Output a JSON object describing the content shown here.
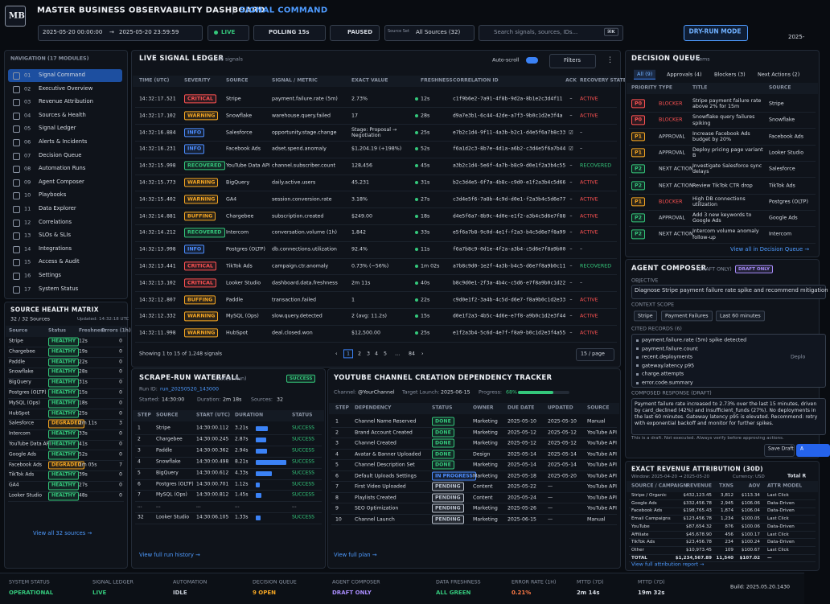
{
  "header": {
    "logo": "MB",
    "title": "MASTER BUSINESS OBSERVABILITY DASHBOARD",
    "separator": "|",
    "subtitle": "SIGNAL COMMAND",
    "date_start": "2025-05-20 00:00:00",
    "date_arrow": "→",
    "date_end": "2025-05-20 23:59:59",
    "live": "LIVE",
    "polling": "POLLING 15s",
    "paused": "PAUSED",
    "source_set_label": "Source Set",
    "source_set": "All Sources (32)",
    "search": "Search signals, sources, IDs...",
    "shortcut": "⌘K",
    "mode": "DRY-RUN MODE",
    "clock": "2025-"
  },
  "navigation": {
    "title": "NAVIGATION (17 MODULES)",
    "items": [
      [
        "01",
        "Signal Command"
      ],
      [
        "02",
        "Executive Overview"
      ],
      [
        "03",
        "Revenue Attribution"
      ],
      [
        "04",
        "Sources & Health"
      ],
      [
        "05",
        "Signal Ledger"
      ],
      [
        "06",
        "Alerts & Incidents"
      ],
      [
        "07",
        "Decision Queue"
      ],
      [
        "08",
        "Automation Runs"
      ],
      [
        "09",
        "Agent Composer"
      ],
      [
        "10",
        "Playbooks"
      ],
      [
        "11",
        "Data Explorer"
      ],
      [
        "12",
        "Correlations"
      ],
      [
        "13",
        "SLOs & SLIs"
      ],
      [
        "14",
        "Integrations"
      ],
      [
        "15",
        "Access & Audit"
      ],
      [
        "16",
        "Settings"
      ],
      [
        "17",
        "System Status"
      ]
    ]
  },
  "source_health": {
    "title": "SOURCE HEALTH MATRIX",
    "count": "32 / 32 Sources",
    "updated": "Updated: 14:32:18 UTC",
    "table": {
      "columns": [
        "Source",
        "Status",
        "Freshness",
        "Errors (1h)"
      ],
      "rows": [
        [
          "Stripe",
          "HEALTHY",
          "12s",
          "0"
        ],
        [
          "Chargebee",
          "HEALTHY",
          "19s",
          "0"
        ],
        [
          "Paddle",
          "HEALTHY",
          "22s",
          "0"
        ],
        [
          "Snowflake",
          "HEALTHY",
          "28s",
          "0"
        ],
        [
          "BigQuery",
          "HEALTHY",
          "31s",
          "0"
        ],
        [
          "Postgres (OLTP)",
          "HEALTHY",
          "15s",
          "0"
        ],
        [
          "MySQL (Ops)",
          "HEALTHY",
          "18s",
          "0"
        ],
        [
          "HubSpot",
          "HEALTHY",
          "25s",
          "0"
        ],
        [
          "Salesforce",
          "DEGRADED",
          "2m 11s",
          "3"
        ],
        [
          "Intercom",
          "HEALTHY",
          "33s",
          "0"
        ],
        [
          "YouTube Data API",
          "HEALTHY",
          "41s",
          "0"
        ],
        [
          "Google Ads",
          "HEALTHY",
          "52s",
          "0"
        ],
        [
          "Facebook Ads",
          "DEGRADED",
          "1m 05s",
          "7"
        ],
        [
          "TikTok Ads",
          "HEALTHY",
          "39s",
          "0"
        ],
        [
          "GA4",
          "HEALTHY",
          "27s",
          "0"
        ],
        [
          "Looker Studio",
          "HEALTHY",
          "48s",
          "0"
        ]
      ]
    },
    "link": "View all 32 sources →"
  },
  "signal_ledger": {
    "title": "LIVE SIGNAL LEDGER",
    "count": "1,248 signals",
    "auto_scroll": "Auto-scroll",
    "filters": "Filters",
    "menu": "⋮",
    "table": {
      "columns": [
        "TIME (UTC)",
        "SEVERITY",
        "SOURCE",
        "SIGNAL / METRIC",
        "EXACT VALUE",
        "FRESHNESS",
        "CORRELATION ID",
        "ACK",
        "RECOVERY STATE"
      ],
      "rows": [
        [
          "14:32:17.521",
          "CRITICAL",
          "Stripe",
          "payment.failure.rate (5m)",
          "2.73%",
          "12s",
          "c1f9b6e2-7a91-4f8b-9d2a-8b1e2c3d4f11",
          "–",
          "ACTIVE"
        ],
        [
          "14:32:17.102",
          "WARNING",
          "Snowflake",
          "warehouse.query.failed",
          "17",
          "28s",
          "d9a7e3b1-6c44-42de-a7f3-9b0c1d2e3f4a",
          "–",
          "ACTIVE"
        ],
        [
          "14:32:16.884",
          "INFO",
          "Salesforce",
          "opportunity.stage.change",
          "Stage: Proposal → Negotiation",
          "25s",
          "e7b2c1d4-9f11-4a3b-b2c1-d4e5f6a7b8c33",
          "☑",
          "–"
        ],
        [
          "14:32:16.231",
          "INFO",
          "Facebook Ads",
          "adset.spend.anomaly",
          "$1,204.19 (+198%)",
          "52s",
          "f6a1d2c3-8b7e-4d1a-a6b2-c3d4e5f6a7b44",
          "☑",
          "–"
        ],
        [
          "14:32:15.998",
          "RECOVERED",
          "YouTube Data API",
          "channel.subscriber.count",
          "128,456",
          "45s",
          "a3b2c1d4-5e6f-4a7b-b8c9-d0e1f2a3b4c55",
          "–",
          "RECOVERED"
        ],
        [
          "14:32:15.773",
          "WARNING",
          "BigQuery",
          "daily.active.users",
          "45,231",
          "31s",
          "b2c3d4e5-6f7a-4b8c-c9d0-e1f2a3b4c5d66",
          "–",
          "ACTIVE"
        ],
        [
          "14:32:15.402",
          "WARNING",
          "GA4",
          "session.conversion.rate",
          "3.18%",
          "27s",
          "c3d4e5f6-7a8b-4c9d-d0e1-f2a3b4c5d6e77",
          "–",
          "ACTIVE"
        ],
        [
          "14:32:14.881",
          "BUFFING",
          "Chargebee",
          "subscription.created",
          "$249.00",
          "18s",
          "d4e5f6a7-8b9c-4d0e-e1f2-a3b4c5d6e7f88",
          "–",
          "ACTIVE"
        ],
        [
          "14:32:14.212",
          "RECOVERED",
          "Intercom",
          "conversation.volume (1h)",
          "1,842",
          "33s",
          "e5f6a7b8-9c0d-4e1f-f2a3-b4c5d6e7f8a99",
          "–",
          "ACTIVE"
        ],
        [
          "14:32:13.998",
          "INFO",
          "Postgres (OLTP)",
          "db.connections.utilization",
          "92.4%",
          "11s",
          "f6a7b8c9-0d1e-4f2a-a3b4-c5d6e7f8a9b00",
          "–",
          "–"
        ],
        [
          "14:32:13.441",
          "CRITICAL",
          "TikTok Ads",
          "campaign.ctr.anomaly",
          "0.73% (−56%)",
          "1m 02s",
          "a7b8c9d0-1e2f-4a3b-b4c5-d6e7f8a9b0c11",
          "–",
          "RECOVERED"
        ],
        [
          "14:32:13.102",
          "CRITICAL",
          "Looker Studio",
          "dashboard.data.freshness",
          "2m 11s",
          "40s",
          "b8c9d0e1-2f3a-4b4c-c5d6-e7f8a9b0c1d22",
          "–",
          "–"
        ],
        [
          "14:32:12.807",
          "BUFFING",
          "Paddle",
          "transaction.failed",
          "1",
          "22s",
          "c9d0e1f2-3a4b-4c5d-d6e7-f8a9b0c1d2e33",
          "–",
          "ACTIVE"
        ],
        [
          "14:32:12.332",
          "WARNING",
          "MySQL (Ops)",
          "slow.query.detected",
          "2 (avg: 11.2s)",
          "15s",
          "d0e1f2a3-4b5c-4d6e-e7f8-a9b0c1d2e3f44",
          "–",
          "ACTIVE"
        ],
        [
          "14:32:11.998",
          "WARNING",
          "HubSpot",
          "deal.closed.won",
          "$12,500.00",
          "25s",
          "e1f2a3b4-5c6d-4e7f-f8a9-b0c1d2e3f4a55",
          "–",
          "ACTIVE"
        ]
      ]
    },
    "showing": "Showing 1 to 15 of 1,248 signals",
    "pagination": [
      "‹",
      "1",
      "2",
      "3",
      "4",
      "5",
      "…",
      "84",
      "›"
    ],
    "page_size": "15 / page"
  },
  "decision_queue": {
    "title": "DECISION QUEUE",
    "count": "9 items",
    "tabs": [
      "All (9)",
      "Approvals (4)",
      "Blockers (3)",
      "Next Actions (2)"
    ],
    "table": {
      "columns": [
        "PRIORITY",
        "TYPE",
        "TITLE",
        "SOURCE"
      ],
      "rows": [
        [
          "P0",
          "BLOCKER",
          "Stripe payment failure rate above 2% for 15m",
          "Stripe"
        ],
        [
          "P0",
          "BLOCKER",
          "Snowflake query failures spiking",
          "Snowflake"
        ],
        [
          "P1",
          "APPROVAL",
          "Increase Facebook Ads budget by 20%",
          "Facebook Ads"
        ],
        [
          "P1",
          "APPROVAL",
          "Deploy pricing page variant B",
          "Looker Studio"
        ],
        [
          "P2",
          "NEXT ACTION",
          "Investigate Salesforce sync delays",
          "Salesforce"
        ],
        [
          "P2",
          "NEXT ACTION",
          "Review TikTok CTR drop",
          "TikTok Ads"
        ],
        [
          "P1",
          "BLOCKER",
          "High DB connections utilization",
          "Postgres (OLTP)"
        ],
        [
          "P2",
          "APPROVAL",
          "Add 3 new keywords to Google Ads",
          "Google Ads"
        ],
        [
          "P2",
          "NEXT ACTION",
          "Intercom volume anomaly follow-up",
          "Intercom"
        ]
      ]
    },
    "link": "View all in Decision Queue →"
  },
  "agent_composer": {
    "title": "AGENT COMPOSER",
    "subtitle": "(DRAFT ONLY)",
    "badge": "DRAFT ONLY",
    "objective_label": "OBJECTIVE",
    "objective": "Diagnose Stripe payment failure rate spike and recommend mitigation",
    "scope_label": "CONTEXT SCOPE",
    "scope": [
      "Stripe",
      "Payment Failures",
      "Last 60 minutes"
    ],
    "records_label": "CITED RECORDS (6)",
    "records": [
      [
        "payment.failure.rate (5m) spike detected"
      ],
      [
        "payment.failure.count"
      ],
      [
        "recent.deployments",
        "Deplo"
      ],
      [
        "gateway.latency p95"
      ],
      [
        "charge.attempts"
      ],
      [
        "error.code.summary"
      ]
    ],
    "response_label": "COMPOSED RESPONSE (DRAFT)",
    "response": "Payment failure rate increased to 2.73% over the last 15 minutes, driven by card_declined (42%) and insufficient_funds (27%). No deployments in the last 60 minutes. Gateway latency p95 is elevated. Recommend: retry with exponential backoff and monitor for further spikes.",
    "disclaimer": "This is a draft. Not executed. Always verify before approving actions.",
    "save": "Save Draft",
    "approve": "A"
  },
  "revenue_attribution": {
    "title": "EXACT REVENUE ATTRIBUTION (30D)",
    "window": "Window: 2025-04-20 → 2025-05-20",
    "currency": "Currency: USD",
    "total_label": "Total R",
    "table": {
      "columns": [
        "SOURCE / CAMPAIGN",
        "REVENUE",
        "TXNS",
        "AOV",
        "ATTR MODEL"
      ],
      "rows": [
        [
          "Stripe / Organic",
          "$432,123.45",
          "3,812",
          "$113.34",
          "Last Click"
        ],
        [
          "Google Ads",
          "$332,456.78",
          "2,945",
          "$106.06",
          "Data-Driven"
        ],
        [
          "Facebook Ads",
          "$198,765.43",
          "1,874",
          "$106.04",
          "Data-Driven"
        ],
        [
          "Email Campaigns",
          "$123,456.78",
          "1,234",
          "$100.05",
          "Last Click"
        ],
        [
          "YouTube",
          "$87,654.32",
          "876",
          "$100.06",
          "Data-Driven"
        ],
        [
          "Affiliate",
          "$45,678.90",
          "456",
          "$100.17",
          "Last Click"
        ],
        [
          "TikTok Ads",
          "$23,456.78",
          "234",
          "$100.24",
          "Data-Driven"
        ],
        [
          "Other",
          "$10,973.45",
          "109",
          "$100.67",
          "Last Click"
        ],
        [
          "TOTAL",
          "$1,234,567.89",
          "11,540",
          "$107.02",
          "—"
        ]
      ]
    },
    "link": "View full attribution report →"
  },
  "scrape_waterfall": {
    "title": "SCRAPE-RUN WATERFALL",
    "subtitle": "(Latest Run)",
    "status": "SUCCESS",
    "run_label": "Run ID:",
    "run_id": "run_20250520_143000",
    "started_label": "Started:",
    "started": "14:30:00",
    "duration_label": "Duration:",
    "duration": "2m 18s",
    "sources_label": "Sources:",
    "sources": "32",
    "table": {
      "columns": [
        "STEP",
        "SOURCE",
        "START (UTC)",
        "DURATION",
        "STATUS"
      ],
      "rows": [
        [
          "1",
          "Stripe",
          "14:30:00.112",
          {
            "value": 3.21,
            "label": "3.21s"
          },
          "SUCCESS"
        ],
        [
          "2",
          "Chargebee",
          "14:30:00.245",
          {
            "value": 2.87,
            "label": "2.87s"
          },
          "SUCCESS"
        ],
        [
          "3",
          "Paddle",
          "14:30:00.362",
          {
            "value": 2.94,
            "label": "2.94s"
          },
          "SUCCESS"
        ],
        [
          "4",
          "Snowflake",
          "14:30:00.498",
          {
            "value": 8.21,
            "label": "8.21s"
          },
          "SUCCESS"
        ],
        [
          "5",
          "BigQuery",
          "14:30:00.612",
          {
            "value": 4.33,
            "label": "4.33s"
          },
          "SUCCESS"
        ],
        [
          "6",
          "Postgres (OLTP)",
          "14:30:00.701",
          {
            "value": 1.12,
            "label": "1.12s"
          },
          "SUCCESS"
        ],
        [
          "7",
          "MySQL (Ops)",
          "14:30:00.812",
          {
            "value": 1.45,
            "label": "1.45s"
          },
          "SUCCESS"
        ],
        [
          "...",
          "...",
          "...",
          "...",
          "..."
        ],
        [
          "32",
          "Looker Studio",
          "14:30:06.105",
          {
            "value": 1.33,
            "label": "1.33s"
          },
          "SUCCESS"
        ]
      ]
    },
    "link": "View full run history →"
  },
  "youtube_tracker": {
    "title": "YOUTUBE CHANNEL CREATION DEPENDENCY TRACKER",
    "channel_label": "Channel:",
    "channel": "@YourChannel",
    "target_label": "Target Launch:",
    "target": "2025-06-15",
    "progress_label": "Progress:",
    "progress": {
      "value": 68,
      "label": "68%"
    },
    "table": {
      "columns": [
        "STEP",
        "DEPENDENCY",
        "STATUS",
        "OWNER",
        "DUE DATE",
        "UPDATED",
        "SOURCE"
      ],
      "rows": [
        [
          "1",
          "Channel Name Reserved",
          "DONE",
          "Marketing",
          "2025-05-10",
          "2025-05-10",
          "Manual"
        ],
        [
          "2",
          "Brand Account Created",
          "DONE",
          "Marketing",
          "2025-05-12",
          "2025-05-12",
          "YouTube API"
        ],
        [
          "3",
          "Channel Created",
          "DONE",
          "Marketing",
          "2025-05-12",
          "2025-05-12",
          "YouTube API"
        ],
        [
          "4",
          "Avatar & Banner Uploaded",
          "DONE",
          "Design",
          "2025-05-14",
          "2025-05-14",
          "YouTube API"
        ],
        [
          "5",
          "Channel Description Set",
          "DONE",
          "Marketing",
          "2025-05-14",
          "2025-05-14",
          "YouTube API"
        ],
        [
          "6",
          "Default Uploads Settings",
          "IN PROGRESS",
          "Marketing",
          "2025-05-18",
          "2025-05-20",
          "YouTube API"
        ],
        [
          "7",
          "First Video Uploaded",
          "PENDING",
          "Content",
          "2025-05-22",
          "—",
          "YouTube API"
        ],
        [
          "8",
          "Playlists Created",
          "PENDING",
          "Content",
          "2025-05-24",
          "—",
          "YouTube API"
        ],
        [
          "9",
          "SEO Optimization",
          "PENDING",
          "Marketing",
          "2025-05-26",
          "—",
          "YouTube API"
        ],
        [
          "10",
          "Channel Launch",
          "PENDING",
          "Marketing",
          "2025-06-15",
          "—",
          "Manual"
        ]
      ]
    },
    "link": "View full plan →"
  },
  "status_bar": {
    "items": [
      {
        "label": "SYSTEM STATUS",
        "value": "OPERATIONAL"
      },
      {
        "label": "SIGNAL LEDGER",
        "value": "LIVE"
      },
      {
        "label": "AUTOMATION",
        "value": "IDLE"
      },
      {
        "label": "DECISION QUEUE",
        "value": "9 OPEN"
      },
      {
        "label": "AGENT COMPOSER",
        "value": "DRAFT ONLY"
      },
      {
        "label": "DATA FRESHNESS",
        "value": "ALL GREEN"
      },
      {
        "label": "ERROR RATE (1H)",
        "value": "0.21%"
      },
      {
        "label": "MTTD (7D)",
        "value": "2m 14s"
      },
      {
        "label": "MTTD (7D)",
        "value": "19m 32s"
      }
    ],
    "build": "Build: 2025.05.20.1430"
  },
  "status_colors": {
    "CRITICAL": "#ff5252",
    "WARNING": "#f5a623",
    "INFO": "#4c8dff",
    "RECOVERED": "#34c77b",
    "BUFFING": "#f5a623",
    "ACTIVE": "#ff5252",
    "HEALTHY": "#34c77b",
    "DEGRADED": "#f5a623",
    "SUCCESS": "#34c77b",
    "DONE": "#34c77b",
    "IN PROGRESS": "#4c8dff",
    "PENDING": "#b8c0cc",
    "P0": "#ff5252",
    "P1": "#f5a623",
    "P2": "#34c77b",
    "BLOCKER": "#ff5252",
    "APPROVAL": "#c8ced8",
    "NEXT ACTION": "#c8ced8",
    "OPERATIONAL": "#34c77b",
    "LIVE": "#34c77b",
    "IDLE": "#c8ced8",
    "9 OPEN": "#f5a623",
    "DRAFT ONLY": "#a78bfa",
    "ALL GREEN": "#34c77b",
    "0.21%": "#ff7a45"
  }
}
